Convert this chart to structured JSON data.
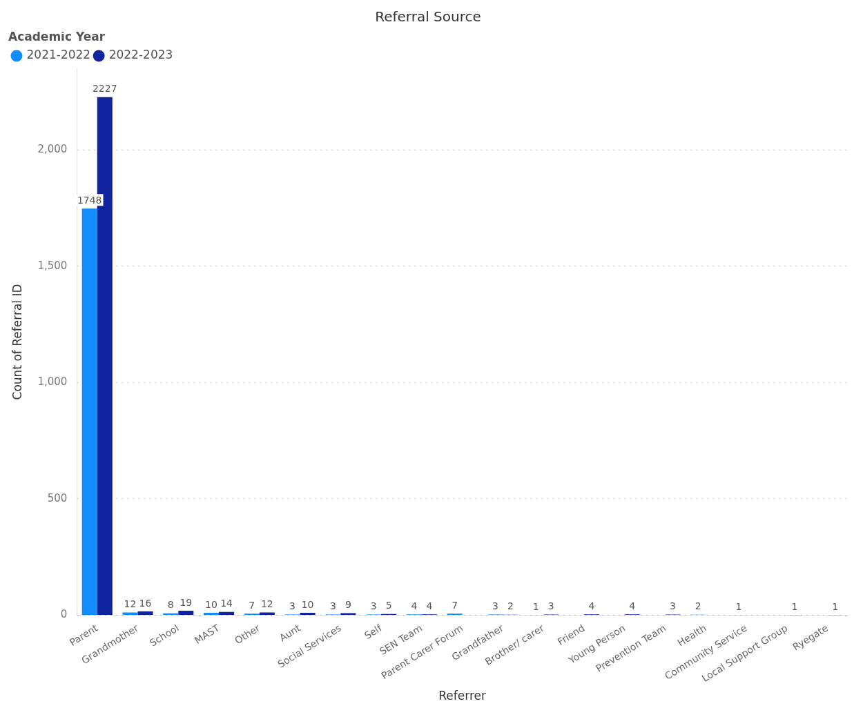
{
  "chart_data": {
    "type": "bar",
    "title": "Referral Source",
    "xlabel": "Referrer",
    "ylabel": "Count of Referral ID",
    "legend_title": "Academic Year",
    "legend": "top left",
    "grid": "y",
    "data_labels": true,
    "categories": [
      "Parent",
      "Grandmother",
      "School",
      "MAST",
      "Other",
      "Aunt",
      "Social Services",
      "Self",
      "SEN Team",
      "Parent Carer Forum",
      "Grandfather",
      "Brother/ carer",
      "Friend",
      "Young Person",
      "Prevention Team",
      "Health",
      "Community Service",
      "Local Support Group",
      "Ryegate"
    ],
    "series": [
      {
        "name": "2021-2022",
        "color": "#118dff",
        "values": [
          1748,
          12,
          8,
          10,
          7,
          3,
          3,
          3,
          4,
          7,
          3,
          1,
          null,
          null,
          null,
          2,
          1,
          null,
          null
        ]
      },
      {
        "name": "2022-2023",
        "color": "#12239e",
        "values": [
          2227,
          16,
          19,
          14,
          12,
          10,
          9,
          5,
          4,
          null,
          2,
          3,
          4,
          4,
          3,
          null,
          null,
          1,
          1
        ]
      }
    ],
    "ylim": [
      0,
      2350
    ],
    "yticks": [
      {
        "value": 0,
        "label": "0"
      },
      {
        "value": 500,
        "label": "500"
      },
      {
        "value": 1000,
        "label": "1,000"
      },
      {
        "value": 1500,
        "label": "1,500"
      },
      {
        "value": 2000,
        "label": "2,000"
      }
    ]
  }
}
